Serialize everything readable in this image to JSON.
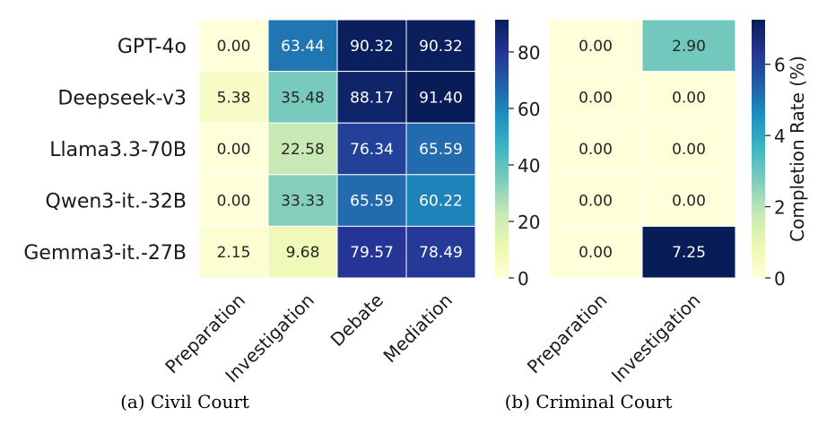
{
  "chart_data": [
    {
      "type": "heatmap",
      "caption": "(a) Civil Court",
      "rows": [
        "GPT-4o",
        "Deepseek-v3",
        "Llama3.3-70B",
        "Qwen3-it.-32B",
        "Gemma3-it.-27B"
      ],
      "columns": [
        "Preparation",
        "Investigation",
        "Debate",
        "Mediation"
      ],
      "values": [
        [
          0.0,
          63.44,
          90.32,
          90.32
        ],
        [
          5.38,
          35.48,
          88.17,
          91.4
        ],
        [
          0.0,
          22.58,
          76.34,
          65.59
        ],
        [
          0.0,
          33.33,
          65.59,
          60.22
        ],
        [
          2.15,
          9.68,
          79.57,
          78.49
        ]
      ],
      "labels": [
        [
          "0.00",
          "63.44",
          "90.32",
          "90.32"
        ],
        [
          "5.38",
          "35.48",
          "88.17",
          "91.40"
        ],
        [
          "0.00",
          "22.58",
          "76.34",
          "65.59"
        ],
        [
          "0.00",
          "33.33",
          "65.59",
          "60.22"
        ],
        [
          "2.15",
          "9.68",
          "79.57",
          "78.49"
        ]
      ],
      "colorbar": {
        "vmin": 0,
        "vmax": 91.4,
        "ticks": [
          0,
          20,
          40,
          60,
          80
        ],
        "tick_labels": [
          "0",
          "20",
          "40",
          "60",
          "80"
        ],
        "label": ""
      },
      "colormap": "YlGnBu"
    },
    {
      "type": "heatmap",
      "caption": "(b) Criminal Court",
      "rows": [
        "GPT-4o",
        "Deepseek-v3",
        "Llama3.3-70B",
        "Qwen3-it.-32B",
        "Gemma3-it.-27B"
      ],
      "columns": [
        "Preparation",
        "Investigation"
      ],
      "values": [
        [
          0.0,
          2.9
        ],
        [
          0.0,
          0.0
        ],
        [
          0.0,
          0.0
        ],
        [
          0.0,
          0.0
        ],
        [
          0.0,
          7.25
        ]
      ],
      "labels": [
        [
          "0.00",
          "2.90"
        ],
        [
          "0.00",
          "0.00"
        ],
        [
          "0.00",
          "0.00"
        ],
        [
          "0.00",
          "0.00"
        ],
        [
          "0.00",
          "7.25"
        ]
      ],
      "colorbar": {
        "vmin": 0,
        "vmax": 7.25,
        "ticks": [
          0,
          2,
          4,
          6
        ],
        "tick_labels": [
          "0",
          "2",
          "4",
          "6"
        ],
        "label": "Completion Rate (%)"
      },
      "colormap": "YlGnBu"
    }
  ]
}
